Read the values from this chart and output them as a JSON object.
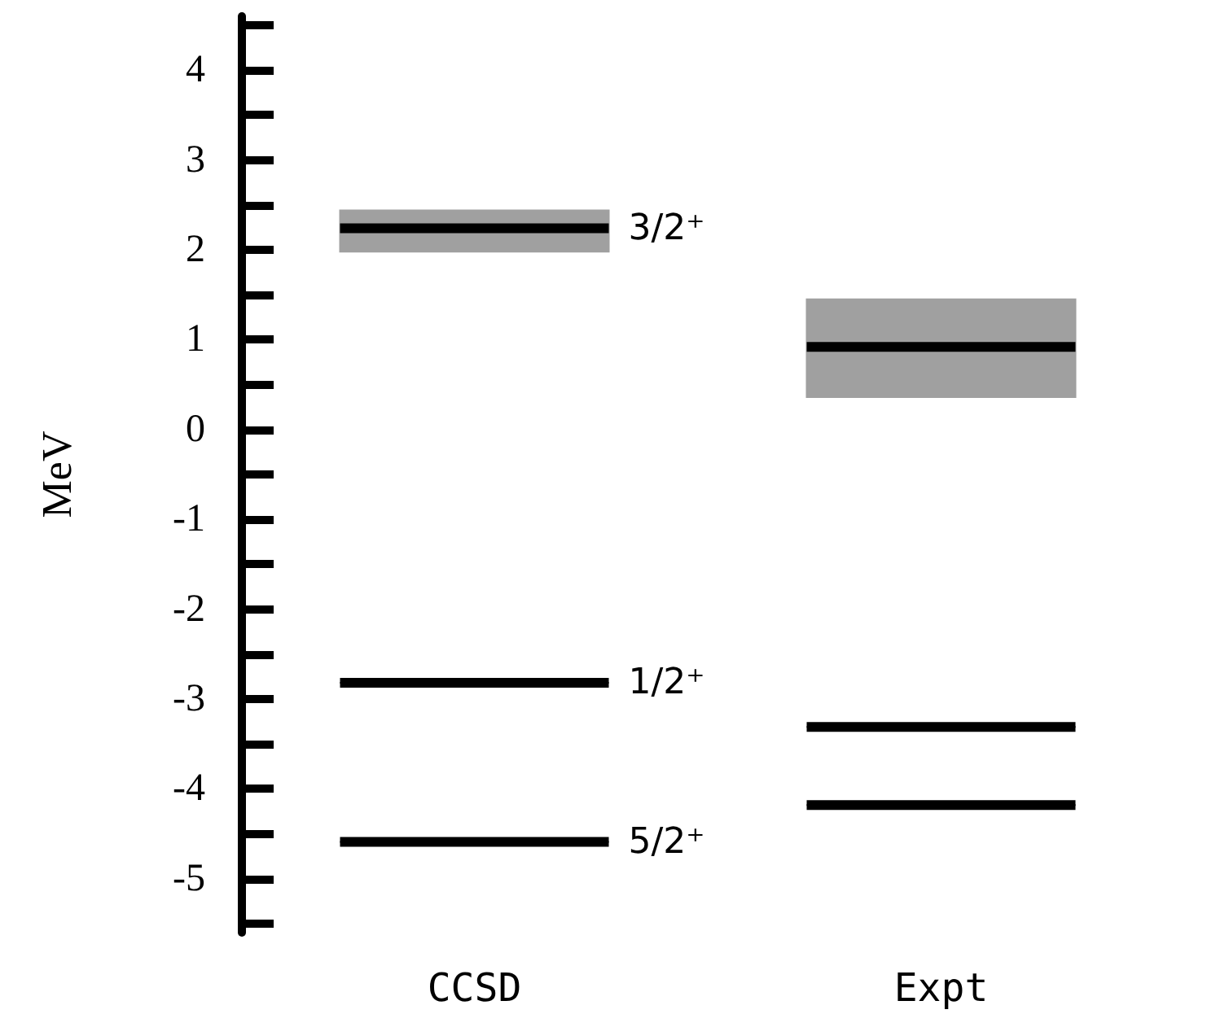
{
  "chart_data": {
    "type": "box",
    "ylabel": "MeV",
    "categories": [
      "CCSD",
      "Expt"
    ],
    "series": [
      {
        "name": "3/2⁺",
        "color": "#a0a0a0",
        "boxes": [
          {
            "low": 1.98,
            "q1": 1.98,
            "median": 2.24,
            "q3": 2.44,
            "high": 2.44
          },
          {
            "low": 0.36,
            "q1": 0.36,
            "median": 0.92,
            "q3": 1.45,
            "high": 1.45
          }
        ]
      },
      {
        "name": "1/2⁺",
        "color": "#000000",
        "boxes": [
          {
            "low": -2.82,
            "q1": -2.82,
            "median": -2.82,
            "q3": -2.82,
            "high": -2.82
          },
          {
            "low": -3.31,
            "q1": -3.31,
            "median": -3.31,
            "q3": -3.31,
            "high": -3.31
          }
        ]
      },
      {
        "name": "5/2⁺",
        "color": "#000000",
        "boxes": [
          {
            "low": -4.59,
            "q1": -4.59,
            "median": -4.59,
            "q3": -4.59,
            "high": -4.59
          },
          {
            "low": -4.18,
            "q1": -4.18,
            "median": -4.18,
            "q3": -4.18,
            "high": -4.18
          }
        ]
      }
    ],
    "ylim": [
      -5.6,
      4.6
    ],
    "yticks": [
      -5,
      -4,
      -3,
      -2,
      -1,
      0,
      1,
      2,
      3,
      4
    ]
  }
}
